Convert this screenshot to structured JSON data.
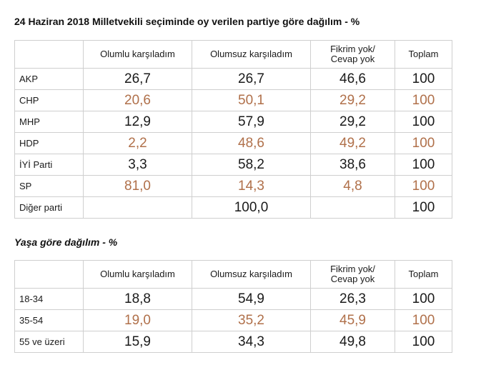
{
  "chart_data": [
    {
      "type": "table",
      "title": "24 Haziran 2018 Milletvekili seçiminde oy verilen partiye göre dağılım - %",
      "columns": [
        "",
        "Olumlu karşıladım",
        "Olumsuz karşıladım",
        "Fikrim yok/\nCevap yok",
        "Toplam"
      ],
      "rows": [
        {
          "label": "AKP",
          "values": [
            "26,7",
            "26,7",
            "46,6",
            "100"
          ]
        },
        {
          "label": "CHP",
          "values": [
            "20,6",
            "50,1",
            "29,2",
            "100"
          ]
        },
        {
          "label": "MHP",
          "values": [
            "12,9",
            "57,9",
            "29,2",
            "100"
          ]
        },
        {
          "label": "HDP",
          "values": [
            "2,2",
            "48,6",
            "49,2",
            "100"
          ]
        },
        {
          "label": "İYİ Parti",
          "values": [
            "3,3",
            "58,2",
            "38,6",
            "100"
          ]
        },
        {
          "label": "SP",
          "values": [
            "81,0",
            "14,3",
            "4,8",
            "100"
          ]
        },
        {
          "label": "Diğer parti",
          "values": [
            "",
            "100,0",
            "",
            "100"
          ]
        }
      ]
    },
    {
      "type": "table",
      "title": "Yaşa göre dağılım - %",
      "columns": [
        "",
        "Olumlu karşıladım",
        "Olumsuz karşıladım",
        "Fikrim yok/\nCevap yok",
        "Toplam"
      ],
      "rows": [
        {
          "label": "18-34",
          "values": [
            "18,8",
            "54,9",
            "26,3",
            "100"
          ]
        },
        {
          "label": "35-54",
          "values": [
            "19,0",
            "35,2",
            "45,9",
            "100"
          ]
        },
        {
          "label": "55 ve üzeri",
          "values": [
            "15,9",
            "34,3",
            "49,8",
            "100"
          ]
        }
      ]
    }
  ],
  "colors": {
    "text": "#1a1a1a",
    "alt_row_value": "#b0704a",
    "grid_line": "#cfcfcf"
  }
}
